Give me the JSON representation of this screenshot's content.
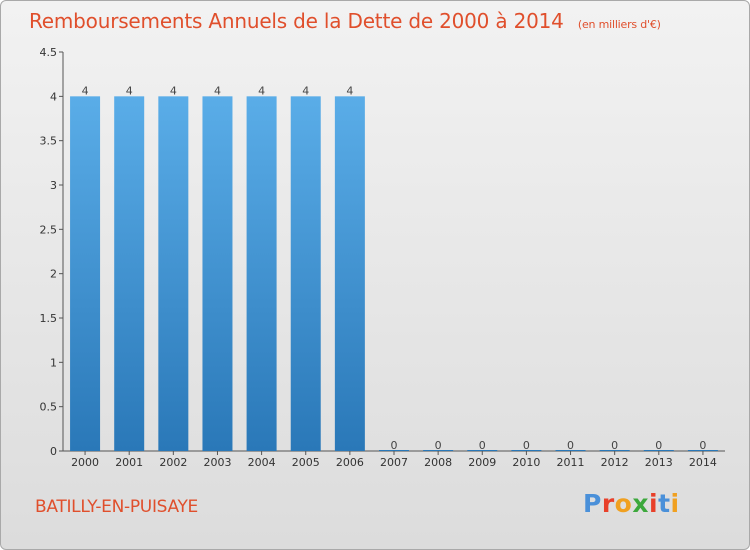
{
  "header": {
    "title": "Remboursements Annuels de la Dette de 2000 à 2014",
    "subtitle": "(en milliers d'€)"
  },
  "footer": {
    "commune": "BATILLY-EN-PUISAYE",
    "brand_letters": [
      "P",
      "r",
      "o",
      "x",
      "i",
      "t",
      "i"
    ]
  },
  "colors": {
    "title": "#e04f2c",
    "bar_top": "#5aade8",
    "bar_bottom": "#2a78b8",
    "brand": [
      "#4a90d9",
      "#e8402a",
      "#f0a020",
      "#3ca83c",
      "#e8402a",
      "#4a90d9",
      "#f0a020"
    ]
  },
  "chart_data": {
    "type": "bar",
    "title": "Remboursements Annuels de la Dette de 2000 à 2014",
    "categories": [
      "2000",
      "2001",
      "2002",
      "2003",
      "2004",
      "2005",
      "2006",
      "2007",
      "2008",
      "2009",
      "2010",
      "2011",
      "2012",
      "2013",
      "2014"
    ],
    "values": [
      4,
      4,
      4,
      4,
      4,
      4,
      4,
      0,
      0,
      0,
      0,
      0,
      0,
      0,
      0
    ],
    "data_labels": [
      "4",
      "4",
      "4",
      "4",
      "4",
      "4",
      "4",
      "0",
      "0",
      "0",
      "0",
      "0",
      "0",
      "0",
      "0"
    ],
    "ylim": [
      0,
      4.5
    ],
    "yticks": [
      0,
      0.5,
      1,
      1.5,
      2,
      2.5,
      3,
      3.5,
      4,
      4.5
    ],
    "ytick_labels": [
      "0",
      "0.5",
      "1",
      "1.5",
      "2",
      "2.5",
      "3",
      "3.5",
      "4",
      "4.5"
    ],
    "xlabel": "",
    "ylabel": "",
    "grid": false,
    "legend": "none"
  }
}
